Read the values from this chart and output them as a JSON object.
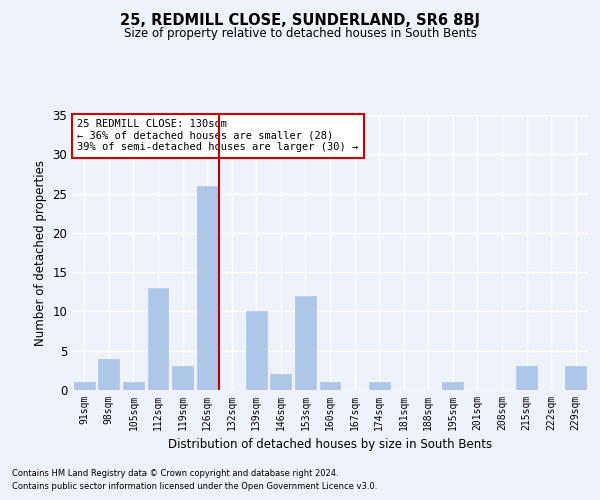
{
  "title": "25, REDMILL CLOSE, SUNDERLAND, SR6 8BJ",
  "subtitle": "Size of property relative to detached houses in South Bents",
  "xlabel": "Distribution of detached houses by size in South Bents",
  "ylabel": "Number of detached properties",
  "categories": [
    "91sqm",
    "98sqm",
    "105sqm",
    "112sqm",
    "119sqm",
    "126sqm",
    "132sqm",
    "139sqm",
    "146sqm",
    "153sqm",
    "160sqm",
    "167sqm",
    "174sqm",
    "181sqm",
    "188sqm",
    "195sqm",
    "201sqm",
    "208sqm",
    "215sqm",
    "222sqm",
    "229sqm"
  ],
  "values": [
    1,
    4,
    1,
    13,
    3,
    26,
    0,
    10,
    2,
    12,
    1,
    0,
    1,
    0,
    0,
    1,
    0,
    0,
    3,
    0,
    3
  ],
  "bar_color": "#aec6e8",
  "bar_edge_color": "#aec6e8",
  "highlight_index": 5,
  "highlight_color": "#c00000",
  "annotation_text": "25 REDMILL CLOSE: 130sqm\n← 36% of detached houses are smaller (28)\n39% of semi-detached houses are larger (30) →",
  "ylim": [
    0,
    35
  ],
  "yticks": [
    0,
    5,
    10,
    15,
    20,
    25,
    30,
    35
  ],
  "background_color": "#eef2fb",
  "grid_color": "#ffffff",
  "footer_line1": "Contains HM Land Registry data © Crown copyright and database right 2024.",
  "footer_line2": "Contains public sector information licensed under the Open Government Licence v3.0."
}
